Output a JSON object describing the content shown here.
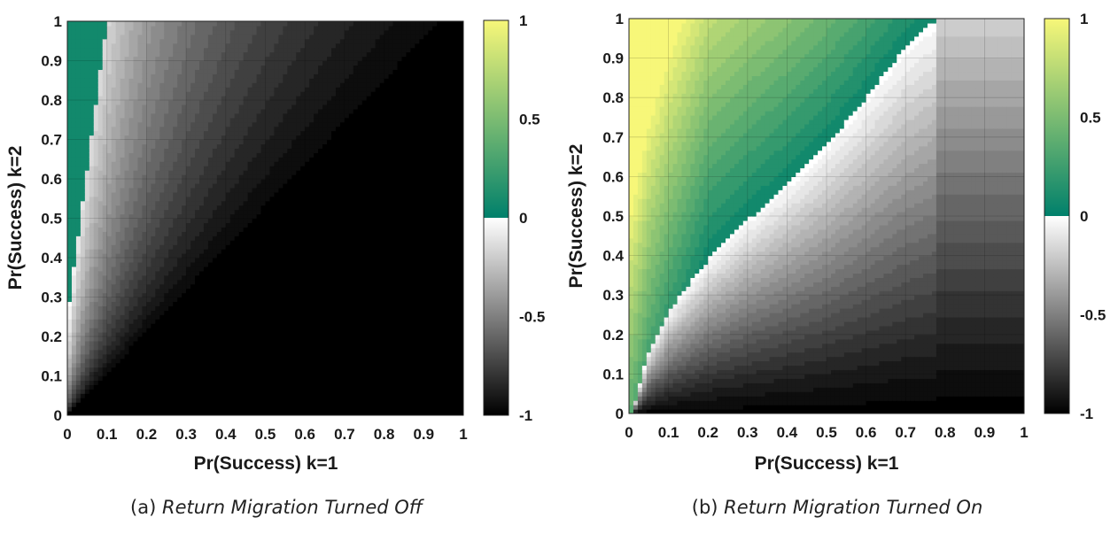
{
  "chart_data": [
    {
      "type": "heatmap",
      "subtype": "filled-contour",
      "panel_label": "(a)",
      "caption": "Return Migration Turned Off",
      "xlabel": "Pr(Success) k=1",
      "ylabel": "Pr(Success) k=2",
      "xlim": [
        0,
        1
      ],
      "ylim": [
        0,
        1
      ],
      "xticks": [
        "0",
        "0.1",
        "0.2",
        "0.3",
        "0.4",
        "0.5",
        "0.6",
        "0.7",
        "0.8",
        "0.9",
        "1"
      ],
      "yticks": [
        "0",
        "0.1",
        "0.2",
        "0.3",
        "0.4",
        "0.5",
        "0.6",
        "0.7",
        "0.8",
        "0.9",
        "1"
      ],
      "grid": true,
      "colorbar": {
        "range": [
          -1,
          1
        ],
        "ticks": [
          "1",
          "0.5",
          "0",
          "-0.5",
          "-1"
        ],
        "positive_color_above_zero": "#00806b",
        "top_color": "#f7f779",
        "negative_colormap": "gray (white at 0 to black at -1)"
      },
      "zero_contour": [
        [
          0,
          0.25
        ],
        [
          0.02,
          0.4
        ],
        [
          0.04,
          0.55
        ],
        [
          0.06,
          0.72
        ],
        [
          0.08,
          0.86
        ],
        [
          0.1,
          1.0
        ]
      ],
      "positive_region_color": "#00806b",
      "description_values": {
        "x_at_zero_contour_y1": 0.1,
        "y_at_zero_contour_x0": 0.25
      }
    },
    {
      "type": "heatmap",
      "subtype": "filled-contour",
      "panel_label": "(b)",
      "caption": "Return Migration Turned On",
      "xlabel": "Pr(Success) k=1",
      "ylabel": "Pr(Success) k=2",
      "xlim": [
        0,
        1
      ],
      "ylim": [
        0,
        1
      ],
      "xticks": [
        "0",
        "0.1",
        "0.2",
        "0.3",
        "0.4",
        "0.5",
        "0.6",
        "0.7",
        "0.8",
        "0.9",
        "1"
      ],
      "yticks": [
        "0",
        "0.1",
        "0.2",
        "0.3",
        "0.4",
        "0.5",
        "0.6",
        "0.7",
        "0.8",
        "0.9",
        "1"
      ],
      "grid": true,
      "colorbar": {
        "range": [
          -1,
          1
        ],
        "ticks": [
          "1",
          "0.5",
          "0",
          "-0.5",
          "-1"
        ],
        "positive_color_above_zero": "#00806b",
        "top_color": "#f7f779",
        "negative_colormap": "gray (white at 0 to black at -1)"
      },
      "zero_contour": [
        [
          0.01,
          0.01
        ],
        [
          0.05,
          0.16
        ],
        [
          0.1,
          0.26
        ],
        [
          0.2,
          0.39
        ],
        [
          0.3,
          0.49
        ],
        [
          0.4,
          0.58
        ],
        [
          0.5,
          0.68
        ],
        [
          0.6,
          0.8
        ],
        [
          0.7,
          0.93
        ],
        [
          0.78,
          1.0
        ]
      ],
      "description_values": {
        "x_at_zero_contour_y1": 0.78
      }
    }
  ]
}
